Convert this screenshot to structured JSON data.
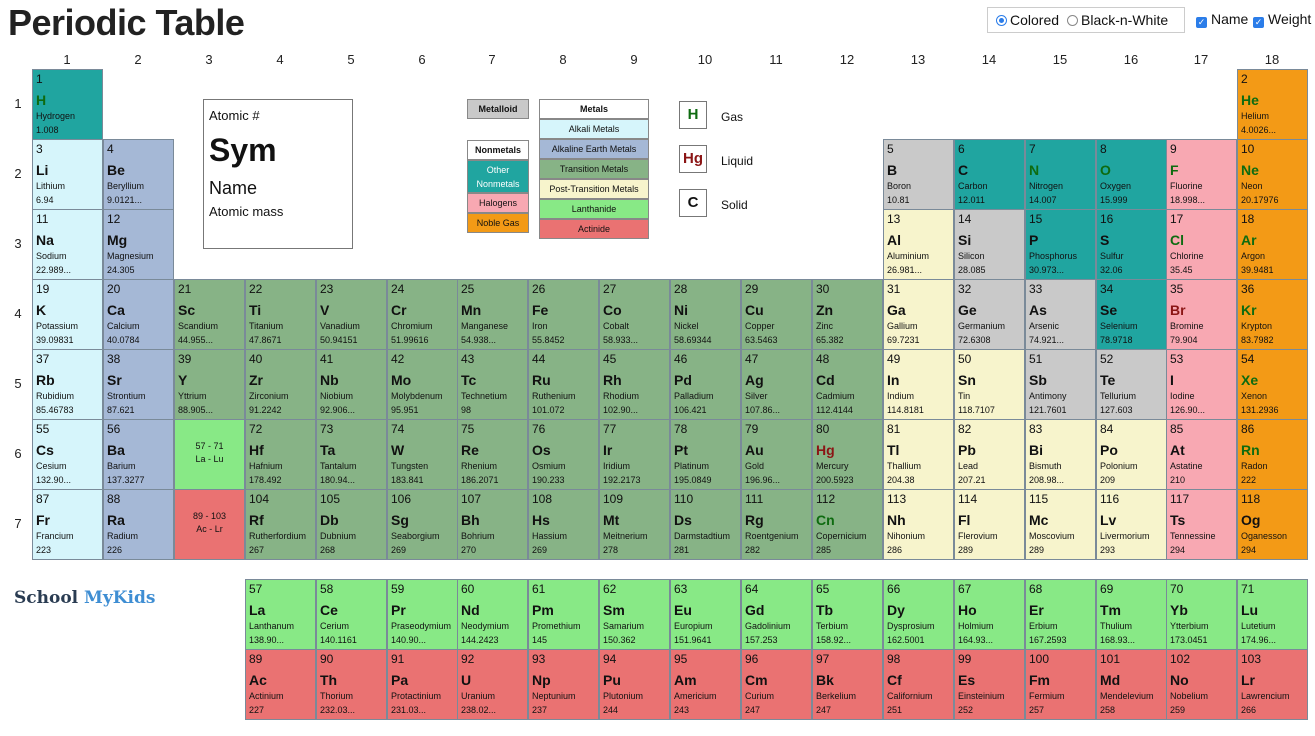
{
  "page": {
    "title": "Periodic Table",
    "brand_part1": "School",
    "brand_part2": "MyKids",
    "brand_colors": {
      "school": "#2a3c52",
      "mykids": "#3f8ed3"
    }
  },
  "controls": {
    "colored_label": "Colored",
    "bw_label": "Black-n-White",
    "colored_selected": true,
    "name_label": "Name",
    "name_checked": true,
    "weight_label": "Weight",
    "weight_checked": true,
    "check_glyph": "✓"
  },
  "group_numbers": [
    "1",
    "2",
    "3",
    "4",
    "5",
    "6",
    "7",
    "8",
    "9",
    "10",
    "11",
    "12",
    "13",
    "14",
    "15",
    "16",
    "17",
    "18"
  ],
  "period_numbers": [
    "1",
    "2",
    "3",
    "4",
    "5",
    "6",
    "7"
  ],
  "category_colors": {
    "alkali": "#d6f5fb",
    "alkaline": "#a5b8d6",
    "transition": "#87b386",
    "post": "#f7f4cc",
    "metalloid": "#c9c9c9",
    "nonmetal": "#20a5a0",
    "halogen": "#f8a8b2",
    "noble": "#f39a16",
    "lanthanide": "#88e986",
    "actinide": "#ea7272"
  },
  "key": {
    "atomic_label": "Atomic #",
    "sym_label": "Sym",
    "name_label": "Name",
    "mass_label": "Atomic mass"
  },
  "legend": {
    "metalloid": "Metalloid",
    "nonmetals": "Nonmetals",
    "other_nonmetals": "Other Nonmetals",
    "halogens": "Halogens",
    "noble_gas": "Noble Gas",
    "metals": "Metals",
    "alkali_metals": "Alkali Metals",
    "alkaline_earth_metals": "Alkaline Earth Metals",
    "transition_metals": "Transition Metals",
    "post_transition_metals": "Post-Transition Metals",
    "lanthanide": "Lanthanide",
    "actinide": "Actinide"
  },
  "states": {
    "gas_symbol": "H",
    "gas_label": "Gas",
    "liquid_symbol": "Hg",
    "liquid_label": "Liquid",
    "solid_symbol": "C",
    "solid_label": "Solid"
  },
  "placeholders": {
    "lanthanides_range": "57 - 71",
    "lanthanides_short": "La - Lu",
    "actinides_range": "89 - 103",
    "actinides_short": "Ac - Lr"
  },
  "elements": [
    {
      "n": 1,
      "sym": "H",
      "name": "Hydrogen",
      "wt": "1.008",
      "g": 1,
      "p": 1,
      "cat": "nonmetal",
      "state": "gas"
    },
    {
      "n": 2,
      "sym": "He",
      "name": "Helium",
      "wt": "4.0026...",
      "g": 18,
      "p": 1,
      "cat": "noble",
      "state": "gas"
    },
    {
      "n": 3,
      "sym": "Li",
      "name": "Lithium",
      "wt": "6.94",
      "g": 1,
      "p": 2,
      "cat": "alkali",
      "state": "solid"
    },
    {
      "n": 4,
      "sym": "Be",
      "name": "Beryllium",
      "wt": "9.0121...",
      "g": 2,
      "p": 2,
      "cat": "alkaline",
      "state": "solid"
    },
    {
      "n": 5,
      "sym": "B",
      "name": "Boron",
      "wt": "10.81",
      "g": 13,
      "p": 2,
      "cat": "metalloid",
      "state": "solid"
    },
    {
      "n": 6,
      "sym": "C",
      "name": "Carbon",
      "wt": "12.011",
      "g": 14,
      "p": 2,
      "cat": "nonmetal",
      "state": "solid"
    },
    {
      "n": 7,
      "sym": "N",
      "name": "Nitrogen",
      "wt": "14.007",
      "g": 15,
      "p": 2,
      "cat": "nonmetal",
      "state": "gas"
    },
    {
      "n": 8,
      "sym": "O",
      "name": "Oxygen",
      "wt": "15.999",
      "g": 16,
      "p": 2,
      "cat": "nonmetal",
      "state": "gas"
    },
    {
      "n": 9,
      "sym": "F",
      "name": "Fluorine",
      "wt": "18.998...",
      "g": 17,
      "p": 2,
      "cat": "halogen",
      "state": "gas"
    },
    {
      "n": 10,
      "sym": "Ne",
      "name": "Neon",
      "wt": "20.17976",
      "g": 18,
      "p": 2,
      "cat": "noble",
      "state": "gas"
    },
    {
      "n": 11,
      "sym": "Na",
      "name": "Sodium",
      "wt": "22.989...",
      "g": 1,
      "p": 3,
      "cat": "alkali",
      "state": "solid"
    },
    {
      "n": 12,
      "sym": "Mg",
      "name": "Magnesium",
      "wt": "24.305",
      "g": 2,
      "p": 3,
      "cat": "alkaline",
      "state": "solid"
    },
    {
      "n": 13,
      "sym": "Al",
      "name": "Aluminium",
      "wt": "26.981...",
      "g": 13,
      "p": 3,
      "cat": "post",
      "state": "solid"
    },
    {
      "n": 14,
      "sym": "Si",
      "name": "Silicon",
      "wt": "28.085",
      "g": 14,
      "p": 3,
      "cat": "metalloid",
      "state": "solid"
    },
    {
      "n": 15,
      "sym": "P",
      "name": "Phosphorus",
      "wt": "30.973...",
      "g": 15,
      "p": 3,
      "cat": "nonmetal",
      "state": "solid"
    },
    {
      "n": 16,
      "sym": "S",
      "name": "Sulfur",
      "wt": "32.06",
      "g": 16,
      "p": 3,
      "cat": "nonmetal",
      "state": "solid"
    },
    {
      "n": 17,
      "sym": "Cl",
      "name": "Chlorine",
      "wt": "35.45",
      "g": 17,
      "p": 3,
      "cat": "halogen",
      "state": "gas"
    },
    {
      "n": 18,
      "sym": "Ar",
      "name": "Argon",
      "wt": "39.9481",
      "g": 18,
      "p": 3,
      "cat": "noble",
      "state": "gas"
    },
    {
      "n": 19,
      "sym": "K",
      "name": "Potassium",
      "wt": "39.09831",
      "g": 1,
      "p": 4,
      "cat": "alkali",
      "state": "solid"
    },
    {
      "n": 20,
      "sym": "Ca",
      "name": "Calcium",
      "wt": "40.0784",
      "g": 2,
      "p": 4,
      "cat": "alkaline",
      "state": "solid"
    },
    {
      "n": 21,
      "sym": "Sc",
      "name": "Scandium",
      "wt": "44.955...",
      "g": 3,
      "p": 4,
      "cat": "transition",
      "state": "solid"
    },
    {
      "n": 22,
      "sym": "Ti",
      "name": "Titanium",
      "wt": "47.8671",
      "g": 4,
      "p": 4,
      "cat": "transition",
      "state": "solid"
    },
    {
      "n": 23,
      "sym": "V",
      "name": "Vanadium",
      "wt": "50.94151",
      "g": 5,
      "p": 4,
      "cat": "transition",
      "state": "solid"
    },
    {
      "n": 24,
      "sym": "Cr",
      "name": "Chromium",
      "wt": "51.99616",
      "g": 6,
      "p": 4,
      "cat": "transition",
      "state": "solid"
    },
    {
      "n": 25,
      "sym": "Mn",
      "name": "Manganese",
      "wt": "54.938...",
      "g": 7,
      "p": 4,
      "cat": "transition",
      "state": "solid"
    },
    {
      "n": 26,
      "sym": "Fe",
      "name": "Iron",
      "wt": "55.8452",
      "g": 8,
      "p": 4,
      "cat": "transition",
      "state": "solid"
    },
    {
      "n": 27,
      "sym": "Co",
      "name": "Cobalt",
      "wt": "58.933...",
      "g": 9,
      "p": 4,
      "cat": "transition",
      "state": "solid"
    },
    {
      "n": 28,
      "sym": "Ni",
      "name": "Nickel",
      "wt": "58.69344",
      "g": 10,
      "p": 4,
      "cat": "transition",
      "state": "solid"
    },
    {
      "n": 29,
      "sym": "Cu",
      "name": "Copper",
      "wt": "63.5463",
      "g": 11,
      "p": 4,
      "cat": "transition",
      "state": "solid"
    },
    {
      "n": 30,
      "sym": "Zn",
      "name": "Zinc",
      "wt": "65.382",
      "g": 12,
      "p": 4,
      "cat": "transition",
      "state": "solid"
    },
    {
      "n": 31,
      "sym": "Ga",
      "name": "Gallium",
      "wt": "69.7231",
      "g": 13,
      "p": 4,
      "cat": "post",
      "state": "solid"
    },
    {
      "n": 32,
      "sym": "Ge",
      "name": "Germanium",
      "wt": "72.6308",
      "g": 14,
      "p": 4,
      "cat": "metalloid",
      "state": "solid"
    },
    {
      "n": 33,
      "sym": "As",
      "name": "Arsenic",
      "wt": "74.921...",
      "g": 15,
      "p": 4,
      "cat": "metalloid",
      "state": "solid"
    },
    {
      "n": 34,
      "sym": "Se",
      "name": "Selenium",
      "wt": "78.9718",
      "g": 16,
      "p": 4,
      "cat": "nonmetal",
      "state": "solid"
    },
    {
      "n": 35,
      "sym": "Br",
      "name": "Bromine",
      "wt": "79.904",
      "g": 17,
      "p": 4,
      "cat": "halogen",
      "state": "liquid"
    },
    {
      "n": 36,
      "sym": "Kr",
      "name": "Krypton",
      "wt": "83.7982",
      "g": 18,
      "p": 4,
      "cat": "noble",
      "state": "gas"
    },
    {
      "n": 37,
      "sym": "Rb",
      "name": "Rubidium",
      "wt": "85.46783",
      "g": 1,
      "p": 5,
      "cat": "alkali",
      "state": "solid"
    },
    {
      "n": 38,
      "sym": "Sr",
      "name": "Strontium",
      "wt": "87.621",
      "g": 2,
      "p": 5,
      "cat": "alkaline",
      "state": "solid"
    },
    {
      "n": 39,
      "sym": "Y",
      "name": "Yttrium",
      "wt": "88.905...",
      "g": 3,
      "p": 5,
      "cat": "transition",
      "state": "solid"
    },
    {
      "n": 40,
      "sym": "Zr",
      "name": "Zirconium",
      "wt": "91.2242",
      "g": 4,
      "p": 5,
      "cat": "transition",
      "state": "solid"
    },
    {
      "n": 41,
      "sym": "Nb",
      "name": "Niobium",
      "wt": "92.906...",
      "g": 5,
      "p": 5,
      "cat": "transition",
      "state": "solid"
    },
    {
      "n": 42,
      "sym": "Mo",
      "name": "Molybdenum",
      "wt": "95.951",
      "g": 6,
      "p": 5,
      "cat": "transition",
      "state": "solid"
    },
    {
      "n": 43,
      "sym": "Tc",
      "name": "Technetium",
      "wt": "98",
      "g": 7,
      "p": 5,
      "cat": "transition",
      "state": "solid"
    },
    {
      "n": 44,
      "sym": "Ru",
      "name": "Ruthenium",
      "wt": "101.072",
      "g": 8,
      "p": 5,
      "cat": "transition",
      "state": "solid"
    },
    {
      "n": 45,
      "sym": "Rh",
      "name": "Rhodium",
      "wt": "102.90...",
      "g": 9,
      "p": 5,
      "cat": "transition",
      "state": "solid"
    },
    {
      "n": 46,
      "sym": "Pd",
      "name": "Palladium",
      "wt": "106.421",
      "g": 10,
      "p": 5,
      "cat": "transition",
      "state": "solid"
    },
    {
      "n": 47,
      "sym": "Ag",
      "name": "Silver",
      "wt": "107.86...",
      "g": 11,
      "p": 5,
      "cat": "transition",
      "state": "solid"
    },
    {
      "n": 48,
      "sym": "Cd",
      "name": "Cadmium",
      "wt": "112.4144",
      "g": 12,
      "p": 5,
      "cat": "transition",
      "state": "solid"
    },
    {
      "n": 49,
      "sym": "In",
      "name": "Indium",
      "wt": "114.8181",
      "g": 13,
      "p": 5,
      "cat": "post",
      "state": "solid"
    },
    {
      "n": 50,
      "sym": "Sn",
      "name": "Tin",
      "wt": "118.7107",
      "g": 14,
      "p": 5,
      "cat": "post",
      "state": "solid"
    },
    {
      "n": 51,
      "sym": "Sb",
      "name": "Antimony",
      "wt": "121.7601",
      "g": 15,
      "p": 5,
      "cat": "metalloid",
      "state": "solid"
    },
    {
      "n": 52,
      "sym": "Te",
      "name": "Tellurium",
      "wt": "127.603",
      "g": 16,
      "p": 5,
      "cat": "metalloid",
      "state": "solid"
    },
    {
      "n": 53,
      "sym": "I",
      "name": "Iodine",
      "wt": "126.90...",
      "g": 17,
      "p": 5,
      "cat": "halogen",
      "state": "solid"
    },
    {
      "n": 54,
      "sym": "Xe",
      "name": "Xenon",
      "wt": "131.2936",
      "g": 18,
      "p": 5,
      "cat": "noble",
      "state": "gas"
    },
    {
      "n": 55,
      "sym": "Cs",
      "name": "Cesium",
      "wt": "132.90...",
      "g": 1,
      "p": 6,
      "cat": "alkali",
      "state": "solid"
    },
    {
      "n": 56,
      "sym": "Ba",
      "name": "Barium",
      "wt": "137.3277",
      "g": 2,
      "p": 6,
      "cat": "alkaline",
      "state": "solid"
    },
    {
      "n": 72,
      "sym": "Hf",
      "name": "Hafnium",
      "wt": "178.492",
      "g": 4,
      "p": 6,
      "cat": "transition",
      "state": "solid"
    },
    {
      "n": 73,
      "sym": "Ta",
      "name": "Tantalum",
      "wt": "180.94...",
      "g": 5,
      "p": 6,
      "cat": "transition",
      "state": "solid"
    },
    {
      "n": 74,
      "sym": "W",
      "name": "Tungsten",
      "wt": "183.841",
      "g": 6,
      "p": 6,
      "cat": "transition",
      "state": "solid"
    },
    {
      "n": 75,
      "sym": "Re",
      "name": "Rhenium",
      "wt": "186.2071",
      "g": 7,
      "p": 6,
      "cat": "transition",
      "state": "solid"
    },
    {
      "n": 76,
      "sym": "Os",
      "name": "Osmium",
      "wt": "190.233",
      "g": 8,
      "p": 6,
      "cat": "transition",
      "state": "solid"
    },
    {
      "n": 77,
      "sym": "Ir",
      "name": "Iridium",
      "wt": "192.2173",
      "g": 9,
      "p": 6,
      "cat": "transition",
      "state": "solid"
    },
    {
      "n": 78,
      "sym": "Pt",
      "name": "Platinum",
      "wt": "195.0849",
      "g": 10,
      "p": 6,
      "cat": "transition",
      "state": "solid"
    },
    {
      "n": 79,
      "sym": "Au",
      "name": "Gold",
      "wt": "196.96...",
      "g": 11,
      "p": 6,
      "cat": "transition",
      "state": "solid"
    },
    {
      "n": 80,
      "sym": "Hg",
      "name": "Mercury",
      "wt": "200.5923",
      "g": 12,
      "p": 6,
      "cat": "transition",
      "state": "liquid"
    },
    {
      "n": 81,
      "sym": "Tl",
      "name": "Thallium",
      "wt": "204.38",
      "g": 13,
      "p": 6,
      "cat": "post",
      "state": "solid"
    },
    {
      "n": 82,
      "sym": "Pb",
      "name": "Lead",
      "wt": "207.21",
      "g": 14,
      "p": 6,
      "cat": "post",
      "state": "solid"
    },
    {
      "n": 83,
      "sym": "Bi",
      "name": "Bismuth",
      "wt": "208.98...",
      "g": 15,
      "p": 6,
      "cat": "post",
      "state": "solid"
    },
    {
      "n": 84,
      "sym": "Po",
      "name": "Polonium",
      "wt": "209",
      "g": 16,
      "p": 6,
      "cat": "post",
      "state": "solid"
    },
    {
      "n": 85,
      "sym": "At",
      "name": "Astatine",
      "wt": "210",
      "g": 17,
      "p": 6,
      "cat": "halogen",
      "state": "solid"
    },
    {
      "n": 86,
      "sym": "Rn",
      "name": "Radon",
      "wt": "222",
      "g": 18,
      "p": 6,
      "cat": "noble",
      "state": "gas"
    },
    {
      "n": 87,
      "sym": "Fr",
      "name": "Francium",
      "wt": "223",
      "g": 1,
      "p": 7,
      "cat": "alkali",
      "state": "solid"
    },
    {
      "n": 88,
      "sym": "Ra",
      "name": "Radium",
      "wt": "226",
      "g": 2,
      "p": 7,
      "cat": "alkaline",
      "state": "solid"
    },
    {
      "n": 104,
      "sym": "Rf",
      "name": "Rutherfordium",
      "wt": "267",
      "g": 4,
      "p": 7,
      "cat": "transition",
      "state": "solid"
    },
    {
      "n": 105,
      "sym": "Db",
      "name": "Dubnium",
      "wt": "268",
      "g": 5,
      "p": 7,
      "cat": "transition",
      "state": "solid"
    },
    {
      "n": 106,
      "sym": "Sg",
      "name": "Seaborgium",
      "wt": "269",
      "g": 6,
      "p": 7,
      "cat": "transition",
      "state": "solid"
    },
    {
      "n": 107,
      "sym": "Bh",
      "name": "Bohrium",
      "wt": "270",
      "g": 7,
      "p": 7,
      "cat": "transition",
      "state": "solid"
    },
    {
      "n": 108,
      "sym": "Hs",
      "name": "Hassium",
      "wt": "269",
      "g": 8,
      "p": 7,
      "cat": "transition",
      "state": "solid"
    },
    {
      "n": 109,
      "sym": "Mt",
      "name": "Meitnerium",
      "wt": "278",
      "g": 9,
      "p": 7,
      "cat": "transition",
      "state": "solid"
    },
    {
      "n": 110,
      "sym": "Ds",
      "name": "Darmstadtium",
      "wt": "281",
      "g": 10,
      "p": 7,
      "cat": "transition",
      "state": "solid"
    },
    {
      "n": 111,
      "sym": "Rg",
      "name": "Roentgenium",
      "wt": "282",
      "g": 11,
      "p": 7,
      "cat": "transition",
      "state": "solid"
    },
    {
      "n": 112,
      "sym": "Cn",
      "name": "Copernicium",
      "wt": "285",
      "g": 12,
      "p": 7,
      "cat": "transition",
      "state": "gas"
    },
    {
      "n": 113,
      "sym": "Nh",
      "name": "Nihonium",
      "wt": "286",
      "g": 13,
      "p": 7,
      "cat": "post",
      "state": "solid"
    },
    {
      "n": 114,
      "sym": "Fl",
      "name": "Flerovium",
      "wt": "289",
      "g": 14,
      "p": 7,
      "cat": "post",
      "state": "solid"
    },
    {
      "n": 115,
      "sym": "Mc",
      "name": "Moscovium",
      "wt": "289",
      "g": 15,
      "p": 7,
      "cat": "post",
      "state": "solid"
    },
    {
      "n": 116,
      "sym": "Lv",
      "name": "Livermorium",
      "wt": "293",
      "g": 16,
      "p": 7,
      "cat": "post",
      "state": "solid"
    },
    {
      "n": 117,
      "sym": "Ts",
      "name": "Tennessine",
      "wt": "294",
      "g": 17,
      "p": 7,
      "cat": "halogen",
      "state": "solid"
    },
    {
      "n": 118,
      "sym": "Og",
      "name": "Oganesson",
      "wt": "294",
      "g": 18,
      "p": 7,
      "cat": "noble",
      "state": "solid"
    }
  ],
  "lanthanides": [
    {
      "n": 57,
      "sym": "La",
      "name": "Lanthanum",
      "wt": "138.90..."
    },
    {
      "n": 58,
      "sym": "Ce",
      "name": "Cerium",
      "wt": "140.1161"
    },
    {
      "n": 59,
      "sym": "Pr",
      "name": "Praseodymium",
      "wt": "140.90..."
    },
    {
      "n": 60,
      "sym": "Nd",
      "name": "Neodymium",
      "wt": "144.2423"
    },
    {
      "n": 61,
      "sym": "Pm",
      "name": "Promethium",
      "wt": "145"
    },
    {
      "n": 62,
      "sym": "Sm",
      "name": "Samarium",
      "wt": "150.362"
    },
    {
      "n": 63,
      "sym": "Eu",
      "name": "Europium",
      "wt": "151.9641"
    },
    {
      "n": 64,
      "sym": "Gd",
      "name": "Gadolinium",
      "wt": "157.253"
    },
    {
      "n": 65,
      "sym": "Tb",
      "name": "Terbium",
      "wt": "158.92..."
    },
    {
      "n": 66,
      "sym": "Dy",
      "name": "Dysprosium",
      "wt": "162.5001"
    },
    {
      "n": 67,
      "sym": "Ho",
      "name": "Holmium",
      "wt": "164.93..."
    },
    {
      "n": 68,
      "sym": "Er",
      "name": "Erbium",
      "wt": "167.2593"
    },
    {
      "n": 69,
      "sym": "Tm",
      "name": "Thulium",
      "wt": "168.93..."
    },
    {
      "n": 70,
      "sym": "Yb",
      "name": "Ytterbium",
      "wt": "173.0451"
    },
    {
      "n": 71,
      "sym": "Lu",
      "name": "Lutetium",
      "wt": "174.96..."
    }
  ],
  "actinides": [
    {
      "n": 89,
      "sym": "Ac",
      "name": "Actinium",
      "wt": "227"
    },
    {
      "n": 90,
      "sym": "Th",
      "name": "Thorium",
      "wt": "232.03..."
    },
    {
      "n": 91,
      "sym": "Pa",
      "name": "Protactinium",
      "wt": "231.03..."
    },
    {
      "n": 92,
      "sym": "U",
      "name": "Uranium",
      "wt": "238.02..."
    },
    {
      "n": 93,
      "sym": "Np",
      "name": "Neptunium",
      "wt": "237"
    },
    {
      "n": 94,
      "sym": "Pu",
      "name": "Plutonium",
      "wt": "244"
    },
    {
      "n": 95,
      "sym": "Am",
      "name": "Americium",
      "wt": "243"
    },
    {
      "n": 96,
      "sym": "Cm",
      "name": "Curium",
      "wt": "247"
    },
    {
      "n": 97,
      "sym": "Bk",
      "name": "Berkelium",
      "wt": "247"
    },
    {
      "n": 98,
      "sym": "Cf",
      "name": "Californium",
      "wt": "251"
    },
    {
      "n": 99,
      "sym": "Es",
      "name": "Einsteinium",
      "wt": "252"
    },
    {
      "n": 100,
      "sym": "Fm",
      "name": "Fermium",
      "wt": "257"
    },
    {
      "n": 101,
      "sym": "Md",
      "name": "Mendelevium",
      "wt": "258"
    },
    {
      "n": 102,
      "sym": "No",
      "name": "Nobelium",
      "wt": "259"
    },
    {
      "n": 103,
      "sym": "Lr",
      "name": "Lawrencium",
      "wt": "266"
    }
  ]
}
